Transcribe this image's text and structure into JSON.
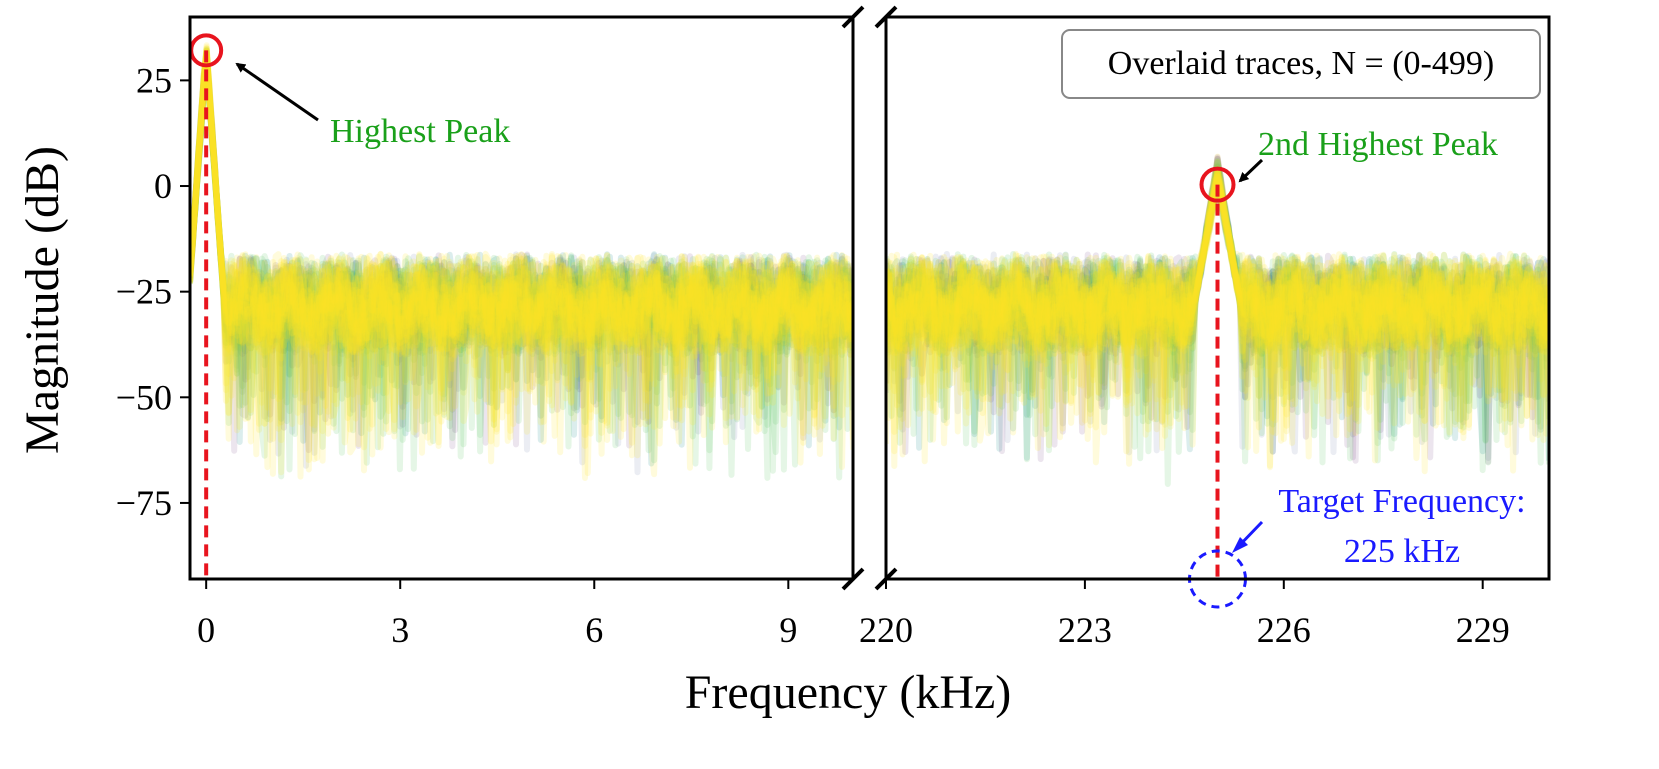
{
  "chart_data": {
    "type": "line",
    "xlabel": "Frequency (kHz)",
    "ylabel": "Magnitude (dB)",
    "ylim": [
      -93,
      40
    ],
    "yticks": [
      25,
      0,
      -25,
      -50,
      -75
    ],
    "ytick_labels": [
      "25",
      "0",
      "−25",
      "−50",
      "−75"
    ],
    "broken_x_axis": true,
    "panels": [
      {
        "xlim": [
          -0.25,
          10
        ],
        "xticks": [
          0,
          3,
          6,
          9
        ],
        "xtick_labels": [
          "0",
          "3",
          "6",
          "9"
        ]
      },
      {
        "xlim": [
          220,
          230
        ],
        "xticks": [
          220,
          223,
          226,
          229
        ],
        "xtick_labels": [
          "220",
          "223",
          "226",
          "229"
        ]
      }
    ],
    "series": [
      {
        "noise_floor_db": -28,
        "noise_min_db": -72,
        "noise_max_db": -15
      }
    ],
    "peaks": [
      {
        "freq_khz": 0,
        "magnitude_db": 34,
        "label": "Highest Peak"
      },
      {
        "freq_khz": 225,
        "magnitude_db": 6,
        "label": "2nd Highest Peak"
      }
    ],
    "target": {
      "freq_khz": 225,
      "label_line1": "Target Frequency:",
      "label_line2": "225 kHz"
    },
    "legend": {
      "text": "Overlaid traces, N = (0-499)",
      "placement": "top-right"
    },
    "grid": false
  },
  "colors": {
    "peak_marker": "#e8141e",
    "target_marker": "#1a1aff",
    "annotation_green": "#1aa01a",
    "arrow": "#000000",
    "palette": [
      "#440154",
      "#3b528b",
      "#21918c",
      "#5ec962",
      "#fde725"
    ]
  }
}
